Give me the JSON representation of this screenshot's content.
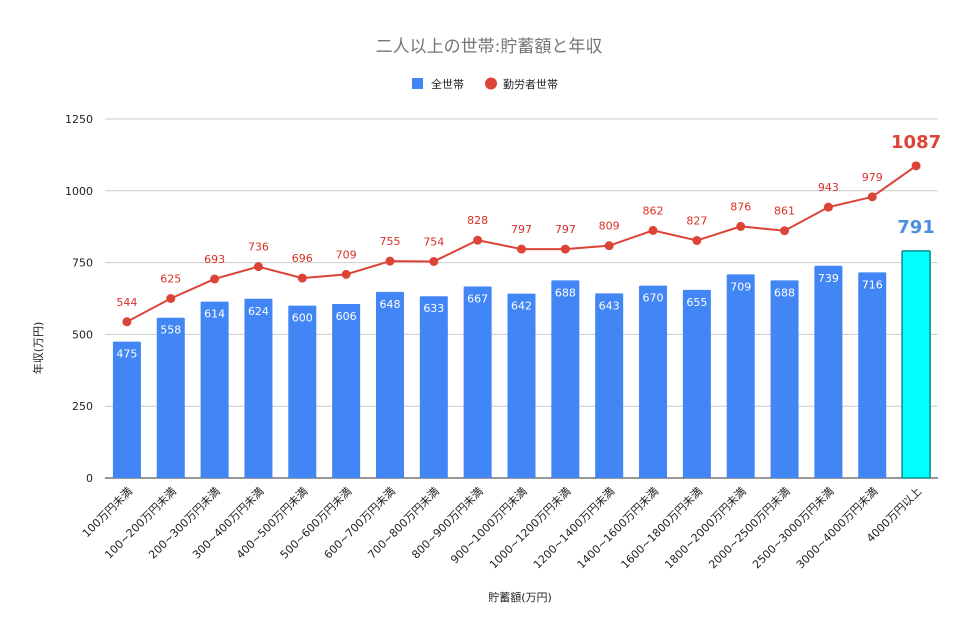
{
  "chart_data": {
    "type": "bar",
    "title": "二人以上の世帯:貯蓄額と年収",
    "xlabel": "貯蓄額(万円)",
    "ylabel": "年収(万円)",
    "ylim": [
      0,
      1250
    ],
    "yticks": [
      0,
      250,
      500,
      750,
      1000,
      1250
    ],
    "grid": true,
    "legend_position": "top",
    "categories": [
      "100万円未満",
      "100~200万円未満",
      "200~300万円未満",
      "300~400万円未満",
      "400~500万円未満",
      "500~600万円未満",
      "600~700万円未満",
      "700~800万円未満",
      "800~900万円未満",
      "900~1000万円未満",
      "1000~1200万円未満",
      "1200~1400万円未満",
      "1400~1600万円未満",
      "1600~1800万円未満",
      "1800~2000万円未満",
      "2000~2500万円未満",
      "2500~3000万円未満",
      "3000~4000万円未満",
      "4000万円以上"
    ],
    "series": [
      {
        "name": "全世帯",
        "type": "bar",
        "color": "#4285f4",
        "highlight_color": "#00ffff",
        "values": [
          475,
          558,
          614,
          624,
          600,
          606,
          648,
          633,
          667,
          642,
          688,
          643,
          670,
          655,
          709,
          688,
          739,
          716,
          791
        ]
      },
      {
        "name": "勤労者世帯",
        "type": "line",
        "color": "#db4437",
        "values": [
          544,
          625,
          693,
          736,
          696,
          709,
          755,
          754,
          828,
          797,
          797,
          809,
          862,
          827,
          876,
          861,
          943,
          979,
          1087
        ]
      }
    ]
  }
}
